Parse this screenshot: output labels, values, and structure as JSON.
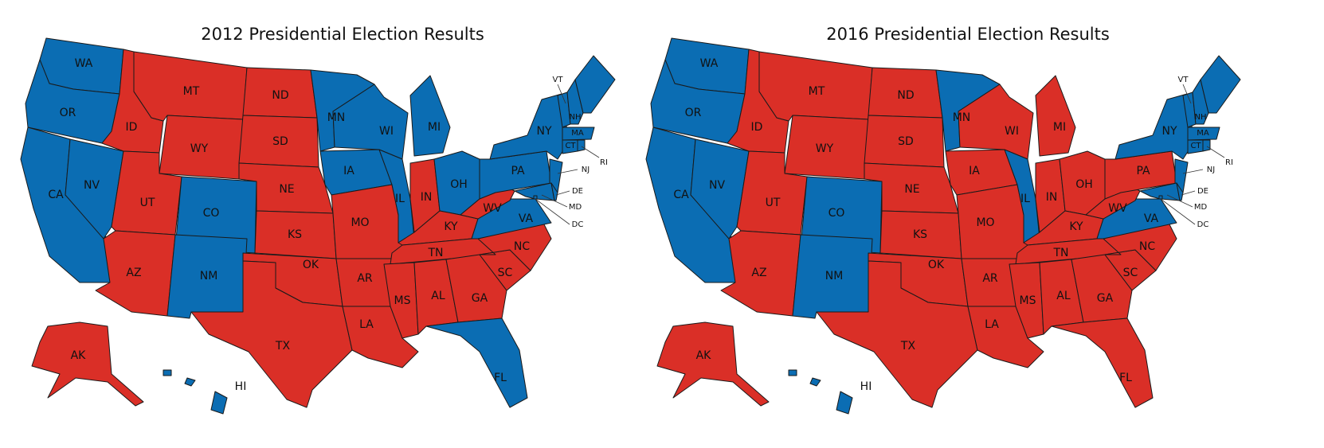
{
  "colors": {
    "dem": "#0b6db3",
    "rep": "#da2f27"
  },
  "maps": [
    {
      "title": "2012 Presidential Election Results",
      "winners": {
        "WA": "dem",
        "OR": "dem",
        "CA": "dem",
        "NV": "dem",
        "ID": "rep",
        "MT": "rep",
        "WY": "rep",
        "UT": "rep",
        "CO": "dem",
        "AZ": "rep",
        "NM": "dem",
        "ND": "rep",
        "SD": "rep",
        "NE": "rep",
        "KS": "rep",
        "OK": "rep",
        "TX": "rep",
        "MN": "dem",
        "IA": "dem",
        "MO": "rep",
        "AR": "rep",
        "LA": "rep",
        "WI": "dem",
        "IL": "dem",
        "MI": "dem",
        "IN": "rep",
        "OH": "dem",
        "KY": "rep",
        "TN": "rep",
        "MS": "rep",
        "AL": "rep",
        "GA": "rep",
        "FL": "dem",
        "SC": "rep",
        "NC": "rep",
        "VA": "dem",
        "WV": "rep",
        "PA": "dem",
        "NY": "dem",
        "VT": "dem",
        "NH": "dem",
        "ME": "dem",
        "MA": "dem",
        "CT": "dem",
        "RI": "dem",
        "NJ": "dem",
        "DE": "dem",
        "MD": "dem",
        "DC": "dem",
        "AK": "rep",
        "HI": "dem"
      }
    },
    {
      "title": "2016 Presidential Election Results",
      "winners": {
        "WA": "dem",
        "OR": "dem",
        "CA": "dem",
        "NV": "dem",
        "ID": "rep",
        "MT": "rep",
        "WY": "rep",
        "UT": "rep",
        "CO": "dem",
        "AZ": "rep",
        "NM": "dem",
        "ND": "rep",
        "SD": "rep",
        "NE": "rep",
        "KS": "rep",
        "OK": "rep",
        "TX": "rep",
        "MN": "dem",
        "IA": "rep",
        "MO": "rep",
        "AR": "rep",
        "LA": "rep",
        "WI": "rep",
        "IL": "dem",
        "MI": "rep",
        "IN": "rep",
        "OH": "rep",
        "KY": "rep",
        "TN": "rep",
        "MS": "rep",
        "AL": "rep",
        "GA": "rep",
        "FL": "rep",
        "SC": "rep",
        "NC": "rep",
        "VA": "dem",
        "WV": "rep",
        "PA": "rep",
        "NY": "dem",
        "VT": "dem",
        "NH": "dem",
        "ME": "dem",
        "MA": "dem",
        "CT": "dem",
        "RI": "dem",
        "NJ": "dem",
        "DE": "dem",
        "MD": "dem",
        "DC": "dem",
        "AK": "rep",
        "HI": "dem"
      }
    }
  ]
}
